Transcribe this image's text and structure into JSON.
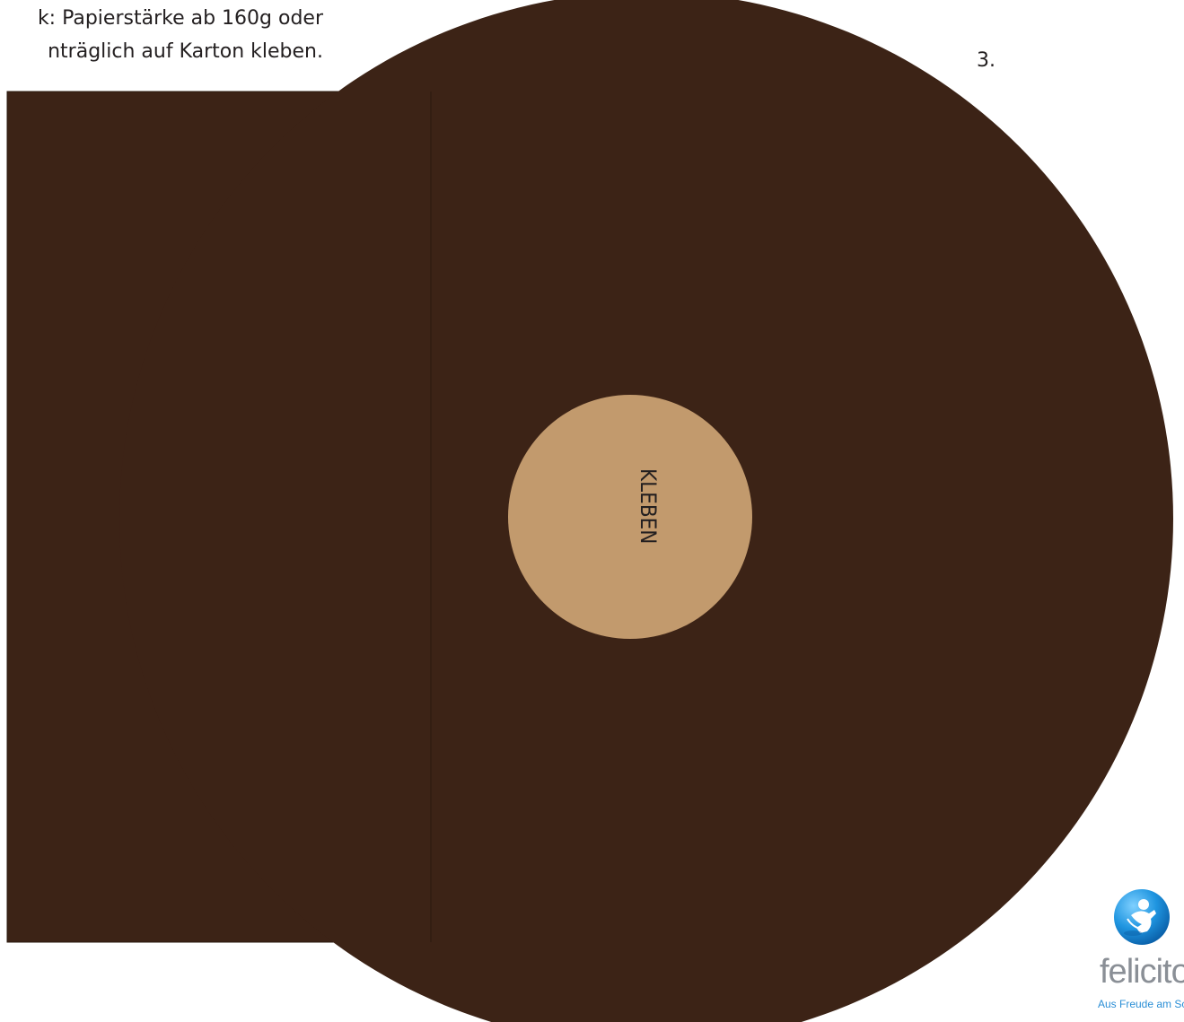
{
  "instructions": {
    "line1": "k: Papierstärke ab 160g oder",
    "line2": "nträglich auf Karton kleben."
  },
  "page_number": "3.",
  "glue_label": "KLEBEN",
  "brand": {
    "name": "felicito",
    "tagline": "Aus Freude am Schenken"
  },
  "colors": {
    "template_fill": "#3c2316",
    "glue_fill": "#c29a6d",
    "brand_blue": "#2b8fd6",
    "brand_gray": "#8a8f96"
  },
  "icons": {
    "logo": "felicito-logo-icon"
  }
}
